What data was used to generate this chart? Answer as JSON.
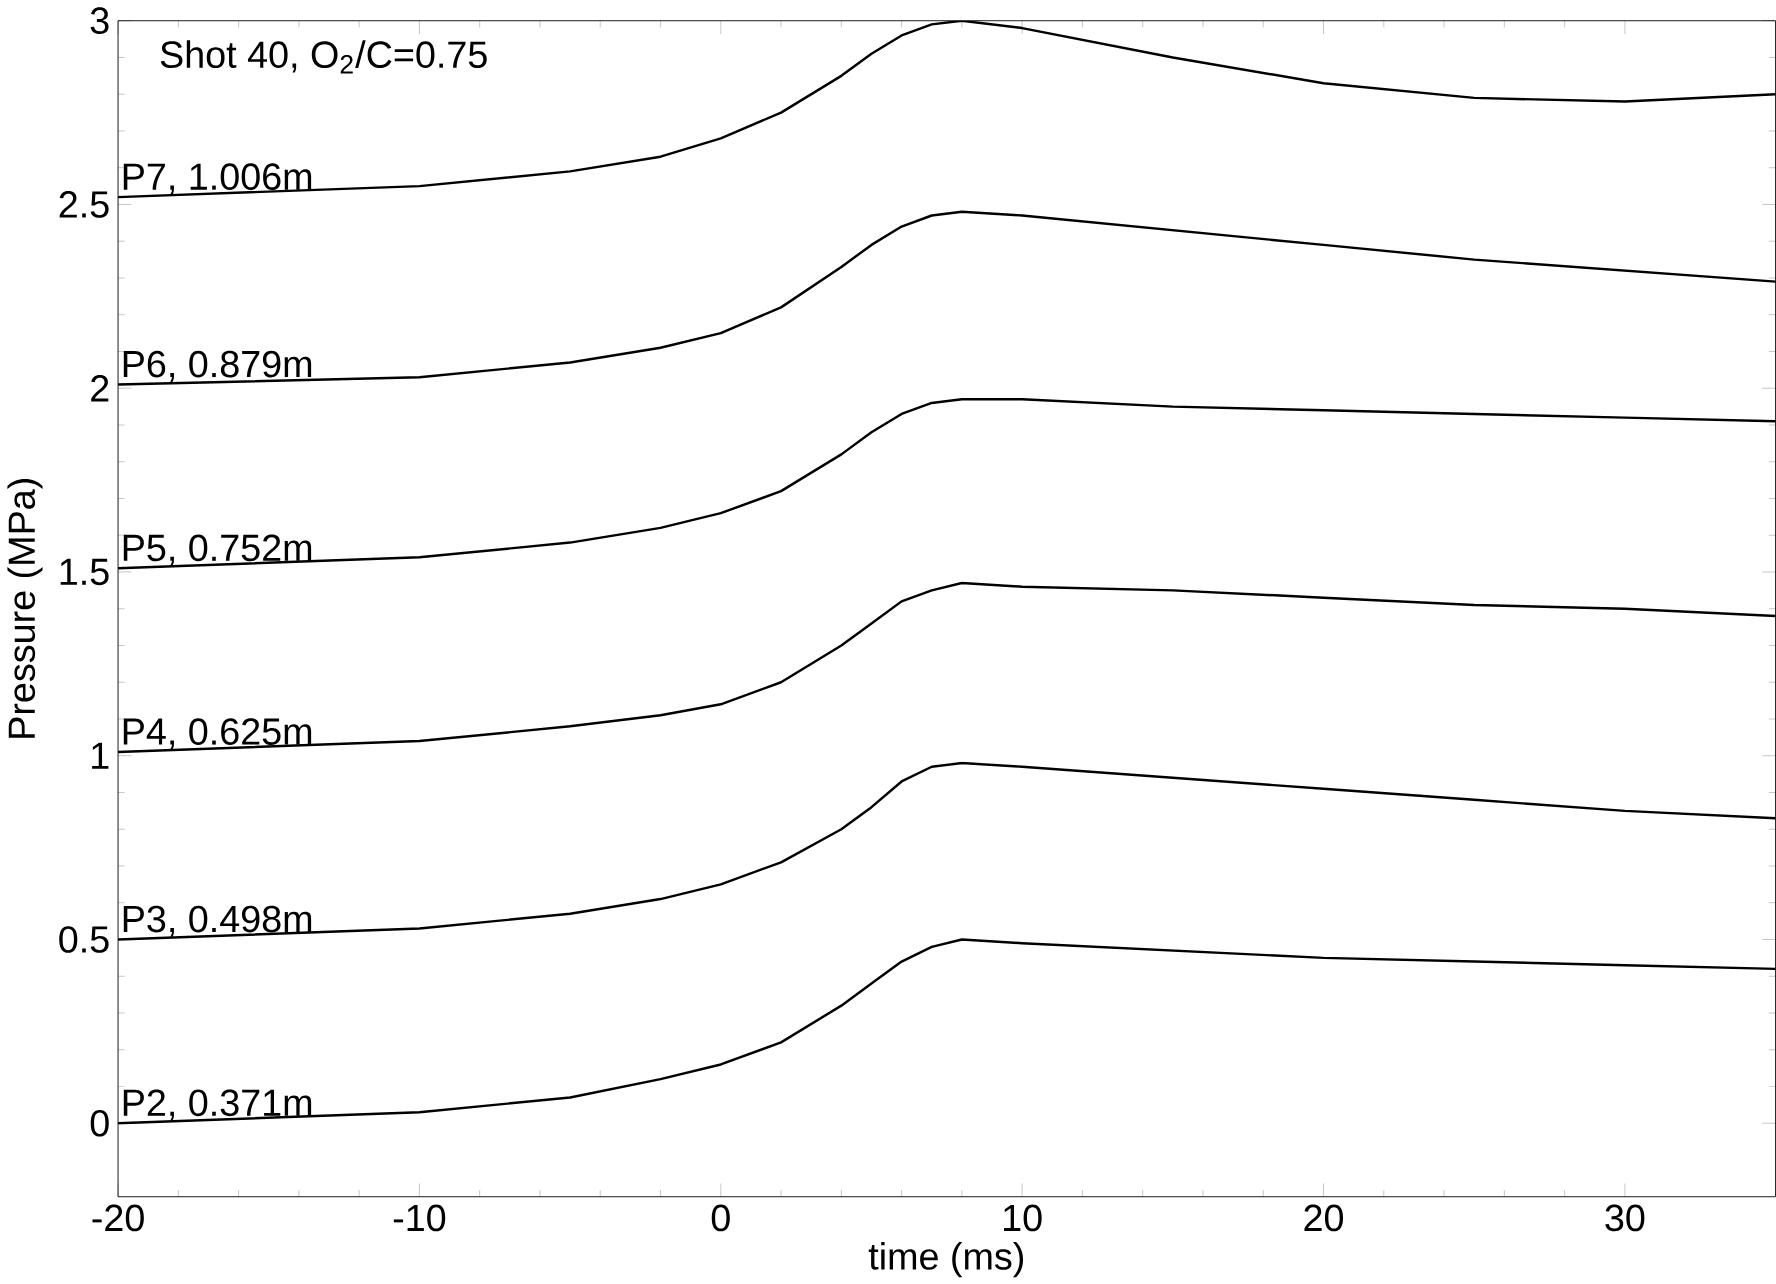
{
  "chart_data": {
    "type": "line",
    "xlabel": "time (ms)",
    "ylabel": "Pressure (MPa)",
    "annotations": [
      "Shot 40, O$_{2}$/C=0.75"
    ],
    "x": [
      -20,
      -10,
      -5,
      -2,
      0,
      2,
      4,
      5,
      6,
      7,
      8,
      10,
      15,
      20,
      25,
      30,
      35
    ],
    "xlim": [
      -20,
      35
    ],
    "ylim": [
      -0.2,
      3
    ],
    "xticks": [
      -20,
      -10,
      0,
      10,
      20,
      30
    ],
    "yticks": [
      0,
      0.5,
      1,
      1.5,
      2,
      2.5,
      3
    ],
    "grid": false,
    "marker": "none",
    "line_style": "solid",
    "series": [
      {
        "name": "P7, 1.006m",
        "color": "#000000",
        "values": [
          2.52,
          2.55,
          2.59,
          2.63,
          2.68,
          2.75,
          2.85,
          2.91,
          2.96,
          2.99,
          3.0,
          2.98,
          2.9,
          2.83,
          2.79,
          2.78,
          2.8
        ]
      },
      {
        "name": "P6, 0.879m",
        "color": "#000000",
        "values": [
          2.01,
          2.03,
          2.07,
          2.11,
          2.15,
          2.22,
          2.33,
          2.39,
          2.44,
          2.47,
          2.48,
          2.47,
          2.43,
          2.39,
          2.35,
          2.32,
          2.29
        ]
      },
      {
        "name": "P5, 0.752m",
        "color": "#000000",
        "values": [
          1.51,
          1.54,
          1.58,
          1.62,
          1.66,
          1.72,
          1.82,
          1.88,
          1.93,
          1.96,
          1.97,
          1.97,
          1.95,
          1.94,
          1.93,
          1.92,
          1.91
        ]
      },
      {
        "name": "P4, 0.625m",
        "color": "#000000",
        "values": [
          1.01,
          1.04,
          1.08,
          1.11,
          1.14,
          1.2,
          1.3,
          1.36,
          1.42,
          1.45,
          1.47,
          1.46,
          1.45,
          1.43,
          1.41,
          1.4,
          1.38
        ]
      },
      {
        "name": "P3, 0.498m",
        "color": "#000000",
        "values": [
          0.5,
          0.53,
          0.57,
          0.61,
          0.65,
          0.71,
          0.8,
          0.86,
          0.93,
          0.97,
          0.98,
          0.97,
          0.94,
          0.91,
          0.88,
          0.85,
          0.83
        ]
      },
      {
        "name": "P2, 0.371m",
        "color": "#000000",
        "values": [
          0.0,
          0.03,
          0.07,
          0.12,
          0.16,
          0.22,
          0.32,
          0.38,
          0.44,
          0.48,
          0.5,
          0.49,
          0.47,
          0.45,
          0.44,
          0.43,
          0.42
        ]
      }
    ]
  }
}
